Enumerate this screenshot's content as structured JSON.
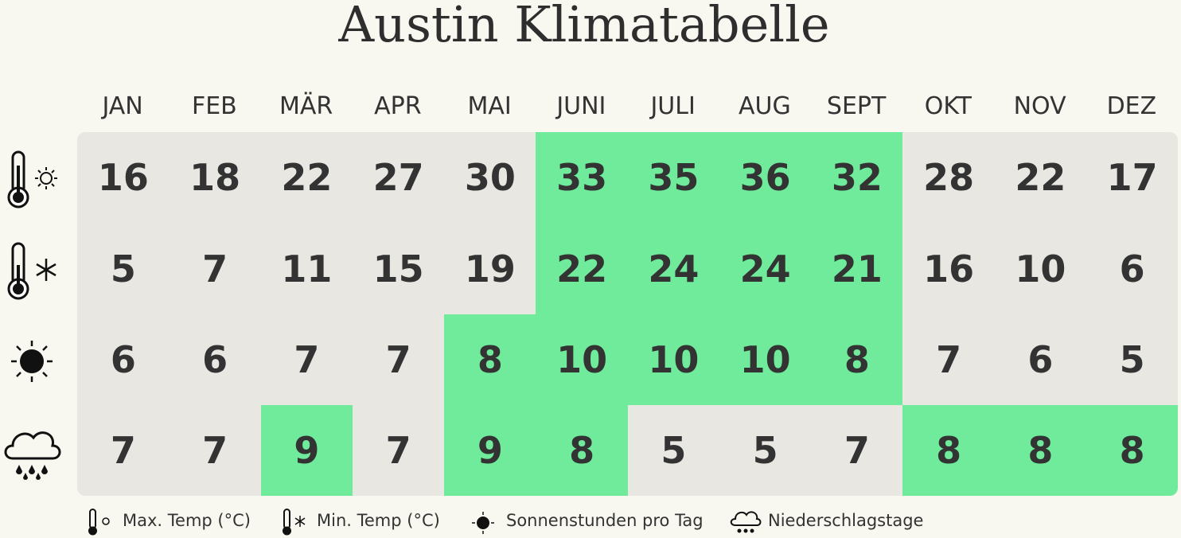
{
  "title": "Austin Klimatabelle",
  "table": {
    "columns": [
      "JAN",
      "FEB",
      "MÄR",
      "APR",
      "MAI",
      "JUNI",
      "JULI",
      "AUG",
      "SEPT",
      "OKT",
      "NOV",
      "DEZ"
    ],
    "rows": [
      {
        "values": [
          16,
          18,
          22,
          27,
          30,
          33,
          35,
          36,
          32,
          28,
          22,
          17
        ],
        "highlight": [
          false,
          false,
          false,
          false,
          false,
          true,
          true,
          true,
          true,
          false,
          false,
          false
        ]
      },
      {
        "values": [
          5,
          7,
          11,
          15,
          19,
          22,
          24,
          24,
          21,
          16,
          10,
          6
        ],
        "highlight": [
          false,
          false,
          false,
          false,
          false,
          true,
          true,
          true,
          true,
          false,
          false,
          false
        ]
      },
      {
        "values": [
          6,
          6,
          7,
          7,
          8,
          10,
          10,
          10,
          8,
          7,
          6,
          5
        ],
        "highlight": [
          false,
          false,
          false,
          false,
          true,
          true,
          true,
          true,
          true,
          false,
          false,
          false
        ]
      },
      {
        "values": [
          7,
          7,
          9,
          7,
          9,
          8,
          5,
          5,
          7,
          8,
          8,
          8
        ],
        "highlight": [
          false,
          false,
          true,
          false,
          true,
          true,
          false,
          false,
          false,
          true,
          true,
          true
        ]
      }
    ],
    "colors": {
      "base": "#e9e7e1",
      "highlight": "#6feb9b"
    }
  },
  "legend": [
    "Max. Temp (°C)",
    "Min. Temp (°C)",
    "Sonnenstunden pro Tag",
    "Niederschlagstage"
  ]
}
